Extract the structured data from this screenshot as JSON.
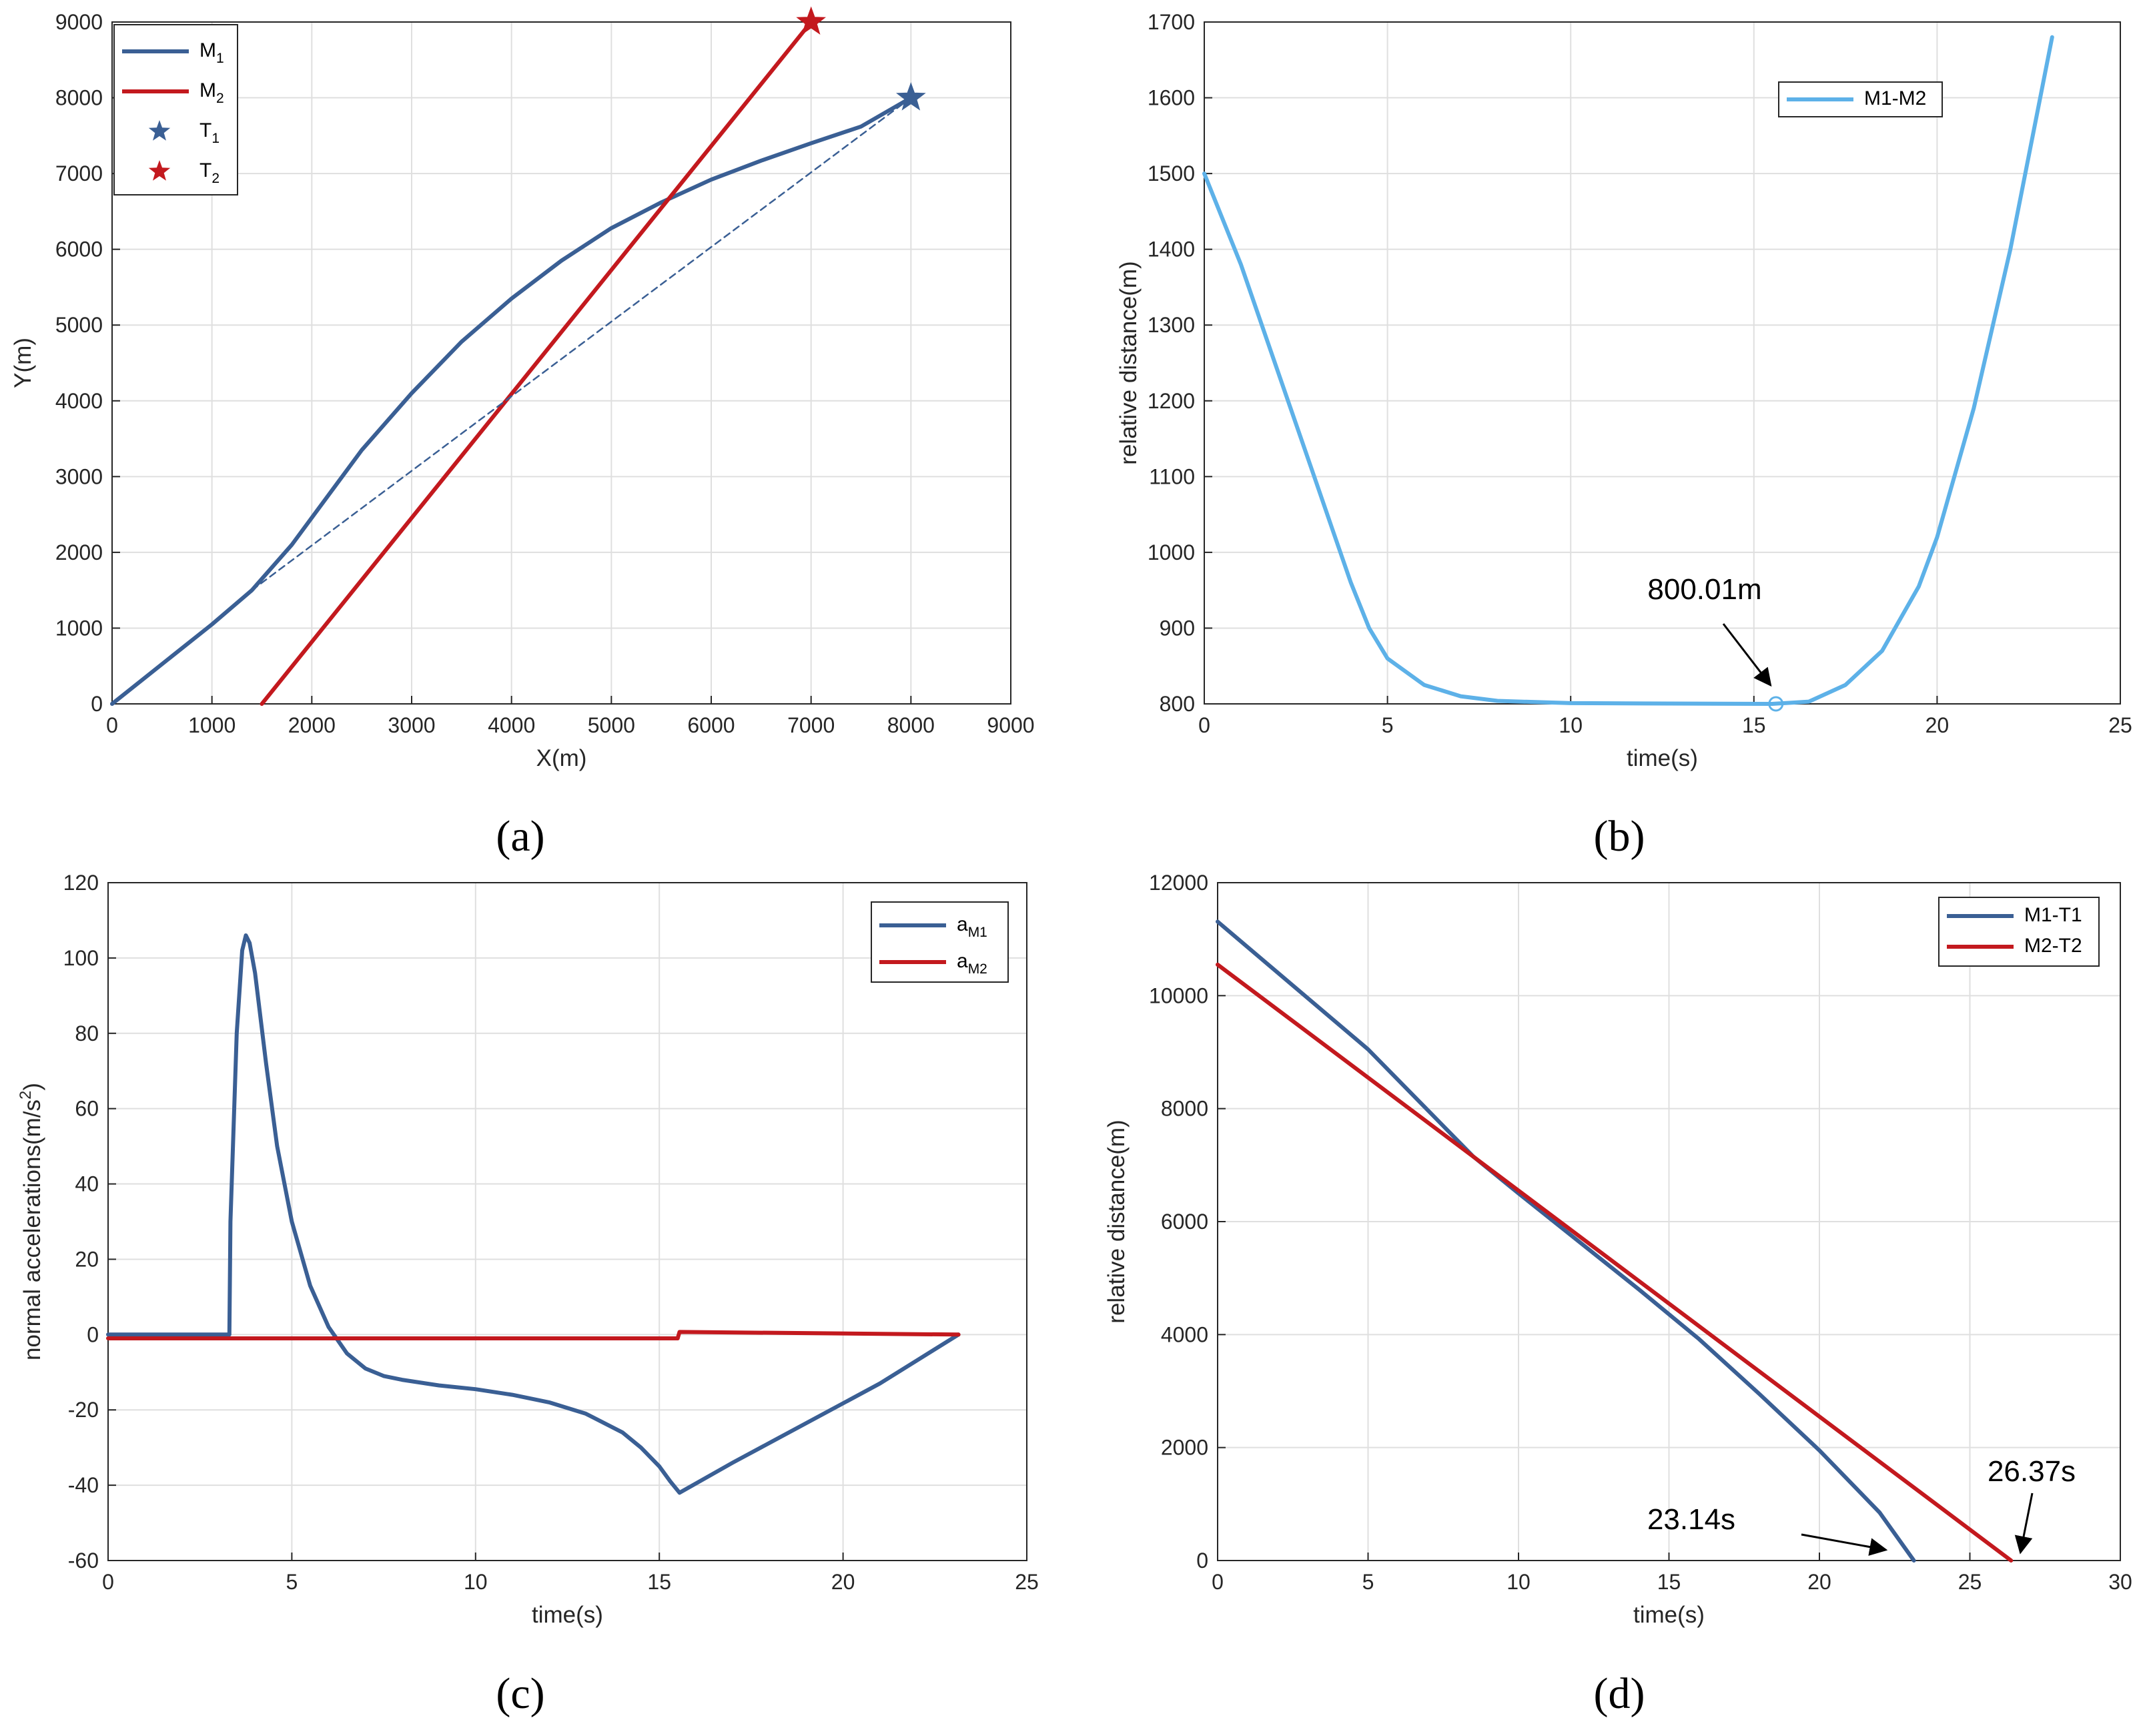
{
  "colors": {
    "blue": "#3a5f94",
    "red": "#c3191e",
    "light_blue": "#5db1e8"
  },
  "panel_labels": [
    "(a)",
    "(b)",
    "(c)",
    "(d)"
  ],
  "chart_data": [
    {
      "id": "a",
      "type": "line",
      "title": "",
      "xlabel": "X(m)",
      "ylabel": "Y(m)",
      "xlim": [
        0,
        9000
      ],
      "ylim": [
        0,
        9000
      ],
      "xticks": [
        0,
        1000,
        2000,
        3000,
        4000,
        5000,
        6000,
        7000,
        8000,
        9000
      ],
      "yticks": [
        0,
        1000,
        2000,
        3000,
        4000,
        5000,
        6000,
        7000,
        8000,
        9000
      ],
      "legend": {
        "position": "top-left",
        "entries": [
          {
            "base": "M",
            "sub": "1",
            "kind": "line",
            "color": "#3a5f94"
          },
          {
            "base": "M",
            "sub": "2",
            "kind": "line",
            "color": "#c3191e"
          },
          {
            "base": "T",
            "sub": "1",
            "kind": "star",
            "color": "#3a5f94"
          },
          {
            "base": "T",
            "sub": "2",
            "kind": "star",
            "color": "#c3191e"
          }
        ]
      },
      "series": [
        {
          "name": "M1",
          "color": "#3a5f94",
          "x": [
            0,
            1000,
            1400,
            1800,
            2500,
            3000,
            3500,
            4000,
            4500,
            5000,
            5500,
            6000,
            6500,
            7000,
            7500,
            8000
          ],
          "y": [
            0,
            1050,
            1500,
            2100,
            3350,
            4100,
            4780,
            5350,
            5850,
            6280,
            6620,
            6920,
            7170,
            7400,
            7620,
            8000
          ]
        },
        {
          "name": "M2",
          "color": "#c3191e",
          "x": [
            1500,
            7000
          ],
          "y": [
            0,
            9000
          ]
        },
        {
          "name": "M1 line of sight",
          "color": "#3a5f94",
          "dashed": true,
          "x": [
            1400,
            8000
          ],
          "y": [
            1500,
            8000
          ]
        }
      ],
      "markers": [
        {
          "name": "T1",
          "x": 8000,
          "y": 8000,
          "color": "#3a5f94"
        },
        {
          "name": "T2",
          "x": 7000,
          "y": 9000,
          "color": "#c3191e"
        }
      ]
    },
    {
      "id": "b",
      "type": "line",
      "xlabel": "time(s)",
      "ylabel": "relative distance(m)",
      "xlim": [
        0,
        25
      ],
      "ylim": [
        800,
        1700
      ],
      "xticks": [
        0,
        5,
        10,
        15,
        20,
        25
      ],
      "yticks": [
        800,
        900,
        1000,
        1100,
        1200,
        1300,
        1400,
        1500,
        1600,
        1700
      ],
      "legend": {
        "position": "upper-center-right",
        "entries": [
          {
            "text": "M1-M2",
            "kind": "line",
            "color": "#5db1e8"
          }
        ]
      },
      "series": [
        {
          "name": "M1-M2",
          "color": "#5db1e8",
          "x": [
            0,
            1,
            2,
            3,
            3.5,
            4,
            4.5,
            5,
            6,
            7,
            8,
            10,
            12,
            14,
            15.5,
            16.5,
            17.5,
            18.5,
            19.5,
            20,
            21,
            22,
            23.14
          ],
          "y": [
            1500,
            1380,
            1240,
            1100,
            1030,
            960,
            900,
            860,
            825,
            810,
            804,
            801,
            800.5,
            800.2,
            800.01,
            803,
            825,
            870,
            955,
            1020,
            1190,
            1400,
            1680
          ]
        }
      ],
      "point_marker": {
        "x": 15.6,
        "y": 800.01
      },
      "annotations": [
        {
          "text": "800.01m",
          "x": 15.6,
          "y": 800.01
        }
      ]
    },
    {
      "id": "c",
      "type": "line",
      "xlabel": "time(s)",
      "ylabel": "normal accelerations(m/s",
      "ylabel_sup": "2",
      "ylabel_end": ")",
      "xlim": [
        0,
        25
      ],
      "ylim": [
        -60,
        120
      ],
      "xticks": [
        0,
        5,
        10,
        15,
        20,
        25
      ],
      "yticks": [
        -60,
        -40,
        -20,
        0,
        20,
        40,
        60,
        80,
        100,
        120
      ],
      "legend": {
        "position": "top-right",
        "entries": [
          {
            "base": "a",
            "sub": "M1",
            "kind": "line",
            "color": "#3a5f94"
          },
          {
            "base": "a",
            "sub": "M2",
            "kind": "line",
            "color": "#c3191e"
          }
        ]
      },
      "series": [
        {
          "name": "aM1",
          "color": "#3a5f94",
          "x": [
            0,
            3.3,
            3.33,
            3.5,
            3.65,
            3.75,
            3.85,
            4,
            4.3,
            4.6,
            5,
            5.5,
            6,
            6.5,
            7,
            7.5,
            8,
            9,
            10,
            11,
            12,
            13,
            14,
            14.5,
            15,
            15.3,
            15.55,
            17,
            19,
            21,
            23.14
          ],
          "y": [
            0,
            0,
            30,
            80,
            102,
            106,
            104,
            96,
            72,
            50,
            30,
            13,
            2,
            -5,
            -9,
            -11,
            -12,
            -13.5,
            -14.5,
            -16,
            -18,
            -21,
            -26,
            -30,
            -35,
            -39,
            -42,
            -34,
            -23.5,
            -13,
            0
          ]
        },
        {
          "name": "aM2",
          "color": "#c3191e",
          "x": [
            0,
            15.5,
            15.55,
            23.14
          ],
          "y": [
            -1,
            -1,
            0.7,
            0
          ]
        }
      ]
    },
    {
      "id": "d",
      "type": "line",
      "xlabel": "time(s)",
      "ylabel": "relative distance(m)",
      "xlim": [
        0,
        30
      ],
      "ylim": [
        0,
        12000
      ],
      "xticks": [
        0,
        5,
        10,
        15,
        20,
        25,
        30
      ],
      "yticks": [
        0,
        2000,
        4000,
        6000,
        8000,
        10000,
        12000
      ],
      "legend": {
        "position": "top-right",
        "entries": [
          {
            "text": "M1-T1",
            "kind": "line",
            "color": "#3a5f94"
          },
          {
            "text": "M2-T2",
            "kind": "line",
            "color": "#c3191e"
          }
        ]
      },
      "series": [
        {
          "name": "M1-T1",
          "color": "#3a5f94",
          "x": [
            0,
            5,
            8.5,
            10,
            12,
            14,
            16,
            18,
            20,
            22,
            23.14
          ],
          "y": [
            11310,
            9050,
            7150,
            6500,
            5650,
            4800,
            3920,
            2950,
            1950,
            850,
            0
          ]
        },
        {
          "name": "M2-T2",
          "color": "#c3191e",
          "x": [
            0,
            26.37
          ],
          "y": [
            10550,
            0
          ]
        }
      ],
      "annotations": [
        {
          "text": "23.14s",
          "x": 23.14,
          "y": 0
        },
        {
          "text": "26.37s",
          "x": 26.37,
          "y": 0
        }
      ]
    }
  ]
}
